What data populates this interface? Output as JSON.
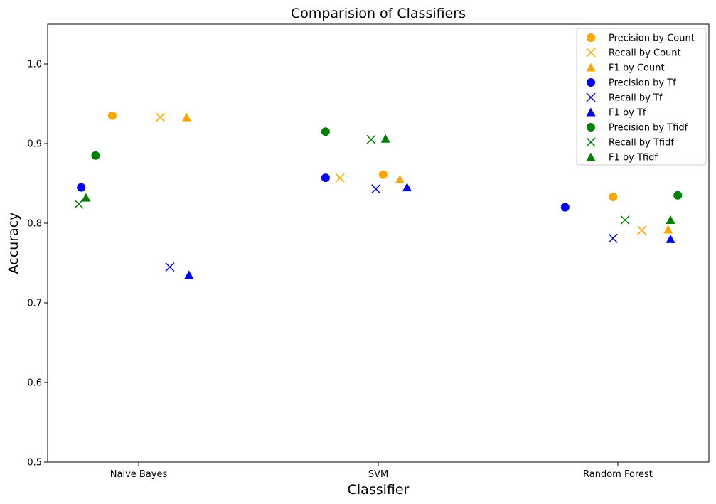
{
  "chart_data": {
    "type": "scatter",
    "title": "Comparision of Classifiers",
    "xlabel": "Classifier",
    "ylabel": "Accuracy",
    "categories": [
      "Naive Bayes",
      "SVM",
      "Random Forest"
    ],
    "ylim": [
      0.5,
      1.05
    ],
    "yticks": [
      "0.5",
      "0.6",
      "0.7",
      "0.8",
      "0.9",
      "1.0"
    ],
    "grid": false,
    "legend_position": "top-right",
    "colors": {
      "Count": "#ffa500",
      "Tf": "#0000ff",
      "Tfidf": "#008000"
    },
    "series": [
      {
        "name": "Precision by Count",
        "marker": "circle",
        "color": "#ffa500",
        "points": [
          {
            "category": "Naive Bayes",
            "offset": -0.11,
            "y": 0.935
          },
          {
            "category": "SVM",
            "offset": 0.02,
            "y": 0.861
          },
          {
            "category": "Random Forest",
            "offset": -0.02,
            "y": 0.833
          }
        ]
      },
      {
        "name": "Recall by Count",
        "marker": "x",
        "color": "#ffa500",
        "points": [
          {
            "category": "Naive Bayes",
            "offset": 0.09,
            "y": 0.933
          },
          {
            "category": "SVM",
            "offset": -0.16,
            "y": 0.857
          },
          {
            "category": "Random Forest",
            "offset": 0.1,
            "y": 0.791
          }
        ]
      },
      {
        "name": "F1 by Count",
        "marker": "triangle",
        "color": "#ffa500",
        "points": [
          {
            "category": "Naive Bayes",
            "offset": 0.2,
            "y": 0.933
          },
          {
            "category": "SVM",
            "offset": 0.09,
            "y": 0.855
          },
          {
            "category": "Random Forest",
            "offset": 0.21,
            "y": 0.792
          }
        ]
      },
      {
        "name": "Precision by Tf",
        "marker": "circle",
        "color": "#0000ff",
        "points": [
          {
            "category": "Naive Bayes",
            "offset": -0.24,
            "y": 0.845
          },
          {
            "category": "SVM",
            "offset": -0.22,
            "y": 0.857
          },
          {
            "category": "Random Forest",
            "offset": -0.22,
            "y": 0.82
          }
        ]
      },
      {
        "name": "Recall by Tf",
        "marker": "x",
        "color": "#0000ff",
        "points": [
          {
            "category": "Naive Bayes",
            "offset": 0.13,
            "y": 0.745
          },
          {
            "category": "SVM",
            "offset": -0.01,
            "y": 0.843
          },
          {
            "category": "Random Forest",
            "offset": -0.02,
            "y": 0.781
          }
        ]
      },
      {
        "name": "F1 by Tf",
        "marker": "triangle",
        "color": "#0000ff",
        "points": [
          {
            "category": "Naive Bayes",
            "offset": 0.21,
            "y": 0.735
          },
          {
            "category": "SVM",
            "offset": 0.12,
            "y": 0.845
          },
          {
            "category": "Random Forest",
            "offset": 0.22,
            "y": 0.78
          }
        ]
      },
      {
        "name": "Precision by Tfidf",
        "marker": "circle",
        "color": "#008000",
        "points": [
          {
            "category": "Naive Bayes",
            "offset": -0.18,
            "y": 0.885
          },
          {
            "category": "SVM",
            "offset": -0.22,
            "y": 0.915
          },
          {
            "category": "Random Forest",
            "offset": 0.25,
            "y": 0.835
          }
        ]
      },
      {
        "name": "Recall by Tfidf",
        "marker": "x",
        "color": "#008000",
        "points": [
          {
            "category": "Naive Bayes",
            "offset": -0.25,
            "y": 0.824
          },
          {
            "category": "SVM",
            "offset": -0.03,
            "y": 0.905
          },
          {
            "category": "Random Forest",
            "offset": 0.03,
            "y": 0.804
          }
        ]
      },
      {
        "name": "F1 by Tfidf",
        "marker": "triangle",
        "color": "#008000",
        "points": [
          {
            "category": "Naive Bayes",
            "offset": -0.22,
            "y": 0.832
          },
          {
            "category": "SVM",
            "offset": 0.03,
            "y": 0.906
          },
          {
            "category": "Random Forest",
            "offset": 0.22,
            "y": 0.804
          }
        ]
      }
    ]
  }
}
